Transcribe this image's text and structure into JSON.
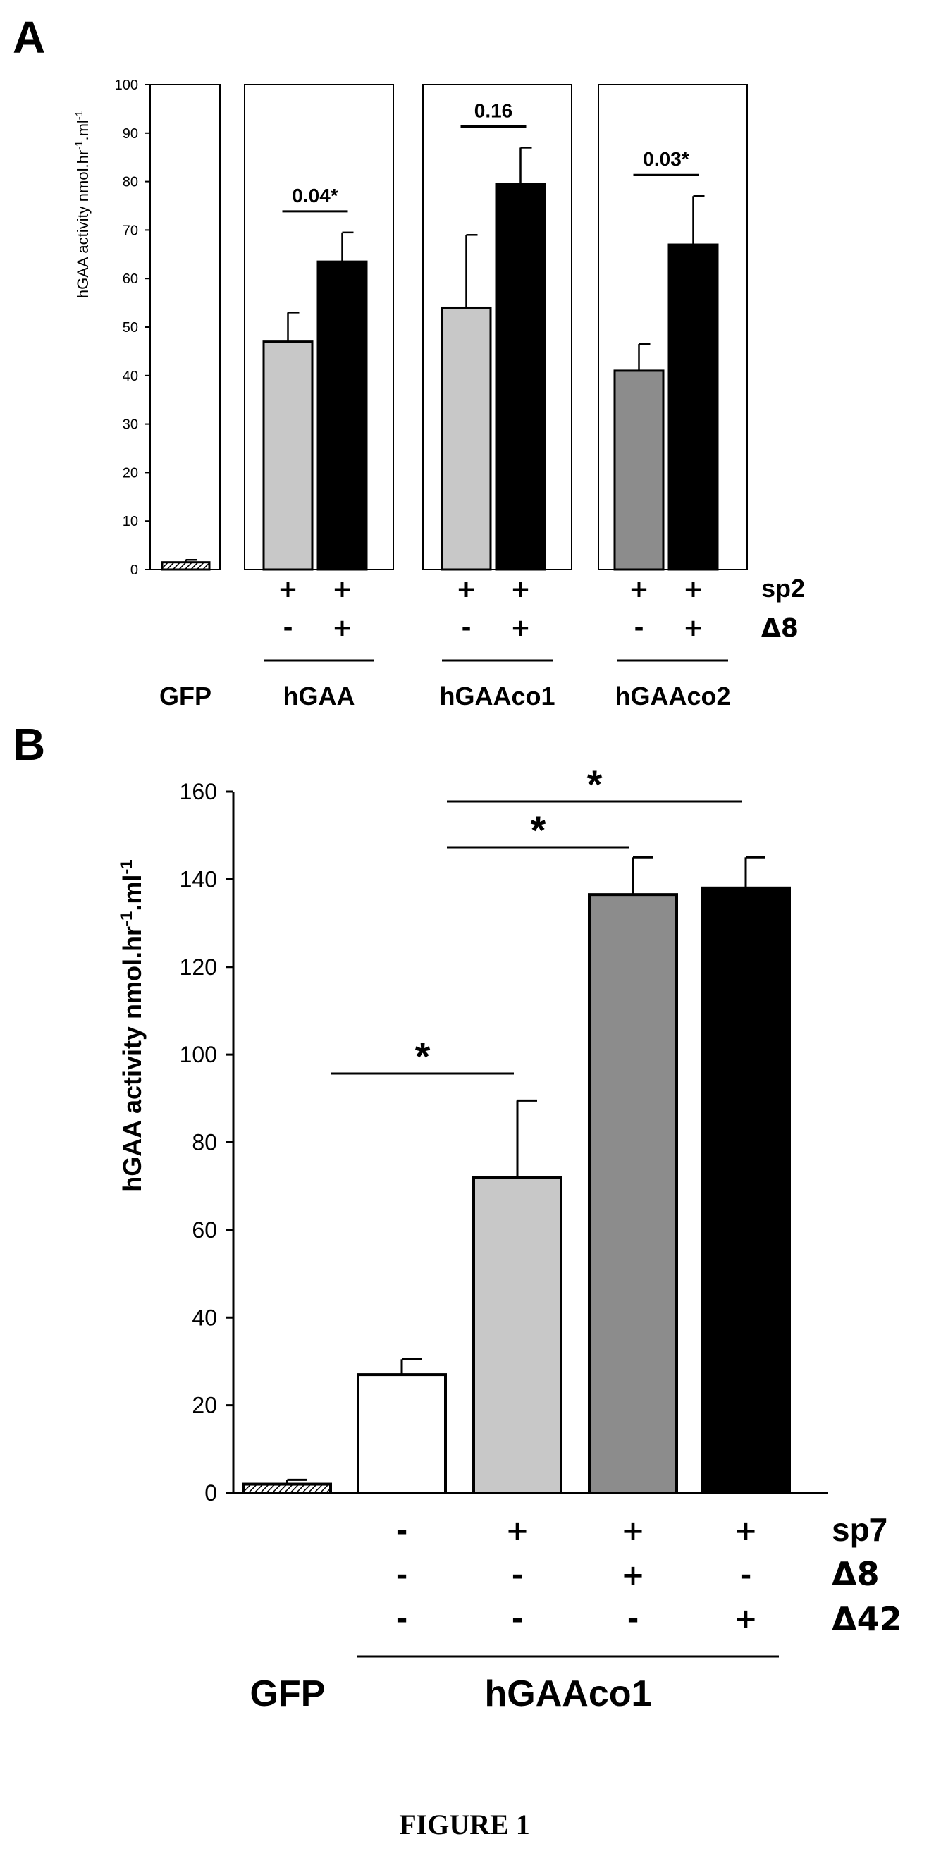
{
  "caption": "FIGURE 1",
  "panels": {
    "a": "A",
    "b": "B"
  },
  "chart_data": [
    {
      "type": "bar",
      "panel": "A",
      "ylabel": "hGAA activity nmol.hr",
      "ylabel_sup1": "-1",
      "ylabel_mid": ".ml",
      "ylabel_sup2": "-1",
      "ylim": [
        0,
        100
      ],
      "yticks": [
        "0",
        "10",
        "20",
        "30",
        "40",
        "50",
        "60",
        "70",
        "80",
        "90",
        "100"
      ],
      "groups": [
        {
          "label": "GFP",
          "bars": [
            {
              "value": 1.5,
              "error": 0.5,
              "fill": "hatched",
              "sp2": "",
              "d8": ""
            }
          ]
        },
        {
          "label": "hGAA",
          "comparison": "0.04*",
          "bars": [
            {
              "value": 47,
              "error": 6,
              "fill": "#c8c8c8",
              "sp2": "+",
              "d8": "-"
            },
            {
              "value": 63.5,
              "error": 6,
              "fill": "#000000",
              "sp2": "+",
              "d8": "+"
            }
          ]
        },
        {
          "label": "hGAAco1",
          "comparison": "0.16",
          "bars": [
            {
              "value": 54,
              "error": 15,
              "fill": "#c8c8c8",
              "sp2": "+",
              "d8": "-"
            },
            {
              "value": 79.5,
              "error": 7.5,
              "fill": "#000000",
              "sp2": "+",
              "d8": "+"
            }
          ]
        },
        {
          "label": "hGAAco2",
          "comparison": "0.03*",
          "bars": [
            {
              "value": 41,
              "error": 5.5,
              "fill": "#8c8c8c",
              "sp2": "+",
              "d8": "-"
            },
            {
              "value": 67,
              "error": 10,
              "fill": "#000000",
              "sp2": "+",
              "d8": "+"
            }
          ]
        }
      ],
      "row_labels": [
        "sp2",
        "Δ8"
      ]
    },
    {
      "type": "bar",
      "panel": "B",
      "ylabel": "hGAA activity nmol.hr",
      "ylabel_sup1": "-1",
      "ylabel_mid": ".ml",
      "ylabel_sup2": "-1",
      "ylim": [
        0,
        160
      ],
      "yticks": [
        "0",
        "20",
        "40",
        "60",
        "80",
        "100",
        "120",
        "140",
        "160"
      ],
      "bars": [
        {
          "value": 2,
          "error": 1,
          "fill": "hatched",
          "sp7": "",
          "d8": "",
          "d42": ""
        },
        {
          "value": 27,
          "error": 3.5,
          "fill": "#ffffff",
          "sp7": "-",
          "d8": "-",
          "d42": "-"
        },
        {
          "value": 72,
          "error": 17.5,
          "fill": "#c8c8c8",
          "sp7": "+",
          "d8": "-",
          "d42": "-"
        },
        {
          "value": 136.5,
          "error": 8.5,
          "fill": "#8c8c8c",
          "sp7": "+",
          "d8": "+",
          "d42": "-"
        },
        {
          "value": 138,
          "error": 7,
          "fill": "#000000",
          "sp7": "+",
          "d8": "-",
          "d42": "+"
        }
      ],
      "significance": [
        {
          "from": 1,
          "to": 2,
          "label": "*"
        },
        {
          "from": 2,
          "to": 3,
          "label": "*"
        },
        {
          "from": 2,
          "to": 4,
          "label": "*"
        }
      ],
      "row_labels": [
        "sp7",
        "Δ8",
        "Δ42"
      ],
      "group_labels": [
        "GFP",
        "hGAAco1"
      ]
    }
  ]
}
